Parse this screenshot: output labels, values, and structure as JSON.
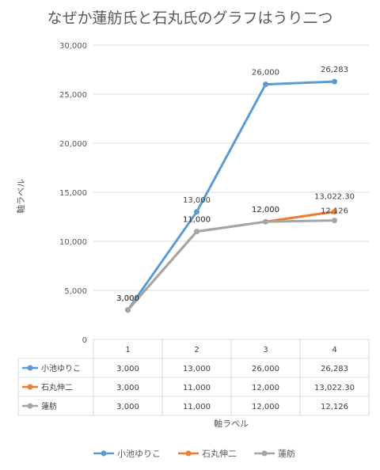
{
  "chart_data": {
    "type": "line",
    "title": "なぜか蓮舫氏と石丸氏のグラフはうり二つ",
    "xlabel": "軸ラベル",
    "ylabel": "軸ラベル",
    "categories": [
      "1",
      "2",
      "3",
      "4"
    ],
    "ylim": [
      0,
      30000
    ],
    "yticks": [
      "0",
      "5,000",
      "10,000",
      "15,000",
      "20,000",
      "25,000",
      "30,000"
    ],
    "grid": true,
    "legend_position": "bottom",
    "series": [
      {
        "name": "小池ゆりこ",
        "color": "#5B9BD5",
        "values": [
          3000,
          13000,
          26000,
          26283
        ],
        "labels": [
          "3,000",
          "13,000",
          "26,000",
          "26,283"
        ]
      },
      {
        "name": "石丸伸二",
        "color": "#ED7D31",
        "values": [
          3000,
          11000,
          12000,
          13022.3
        ],
        "labels": [
          "3,000",
          "11,000",
          "12,000",
          "13,022.30"
        ]
      },
      {
        "name": "蓮舫",
        "color": "#A5A5A5",
        "values": [
          3000,
          11000,
          12000,
          12126
        ],
        "labels": [
          "3,000",
          "11,000",
          "12,000",
          "12,126"
        ]
      }
    ]
  }
}
